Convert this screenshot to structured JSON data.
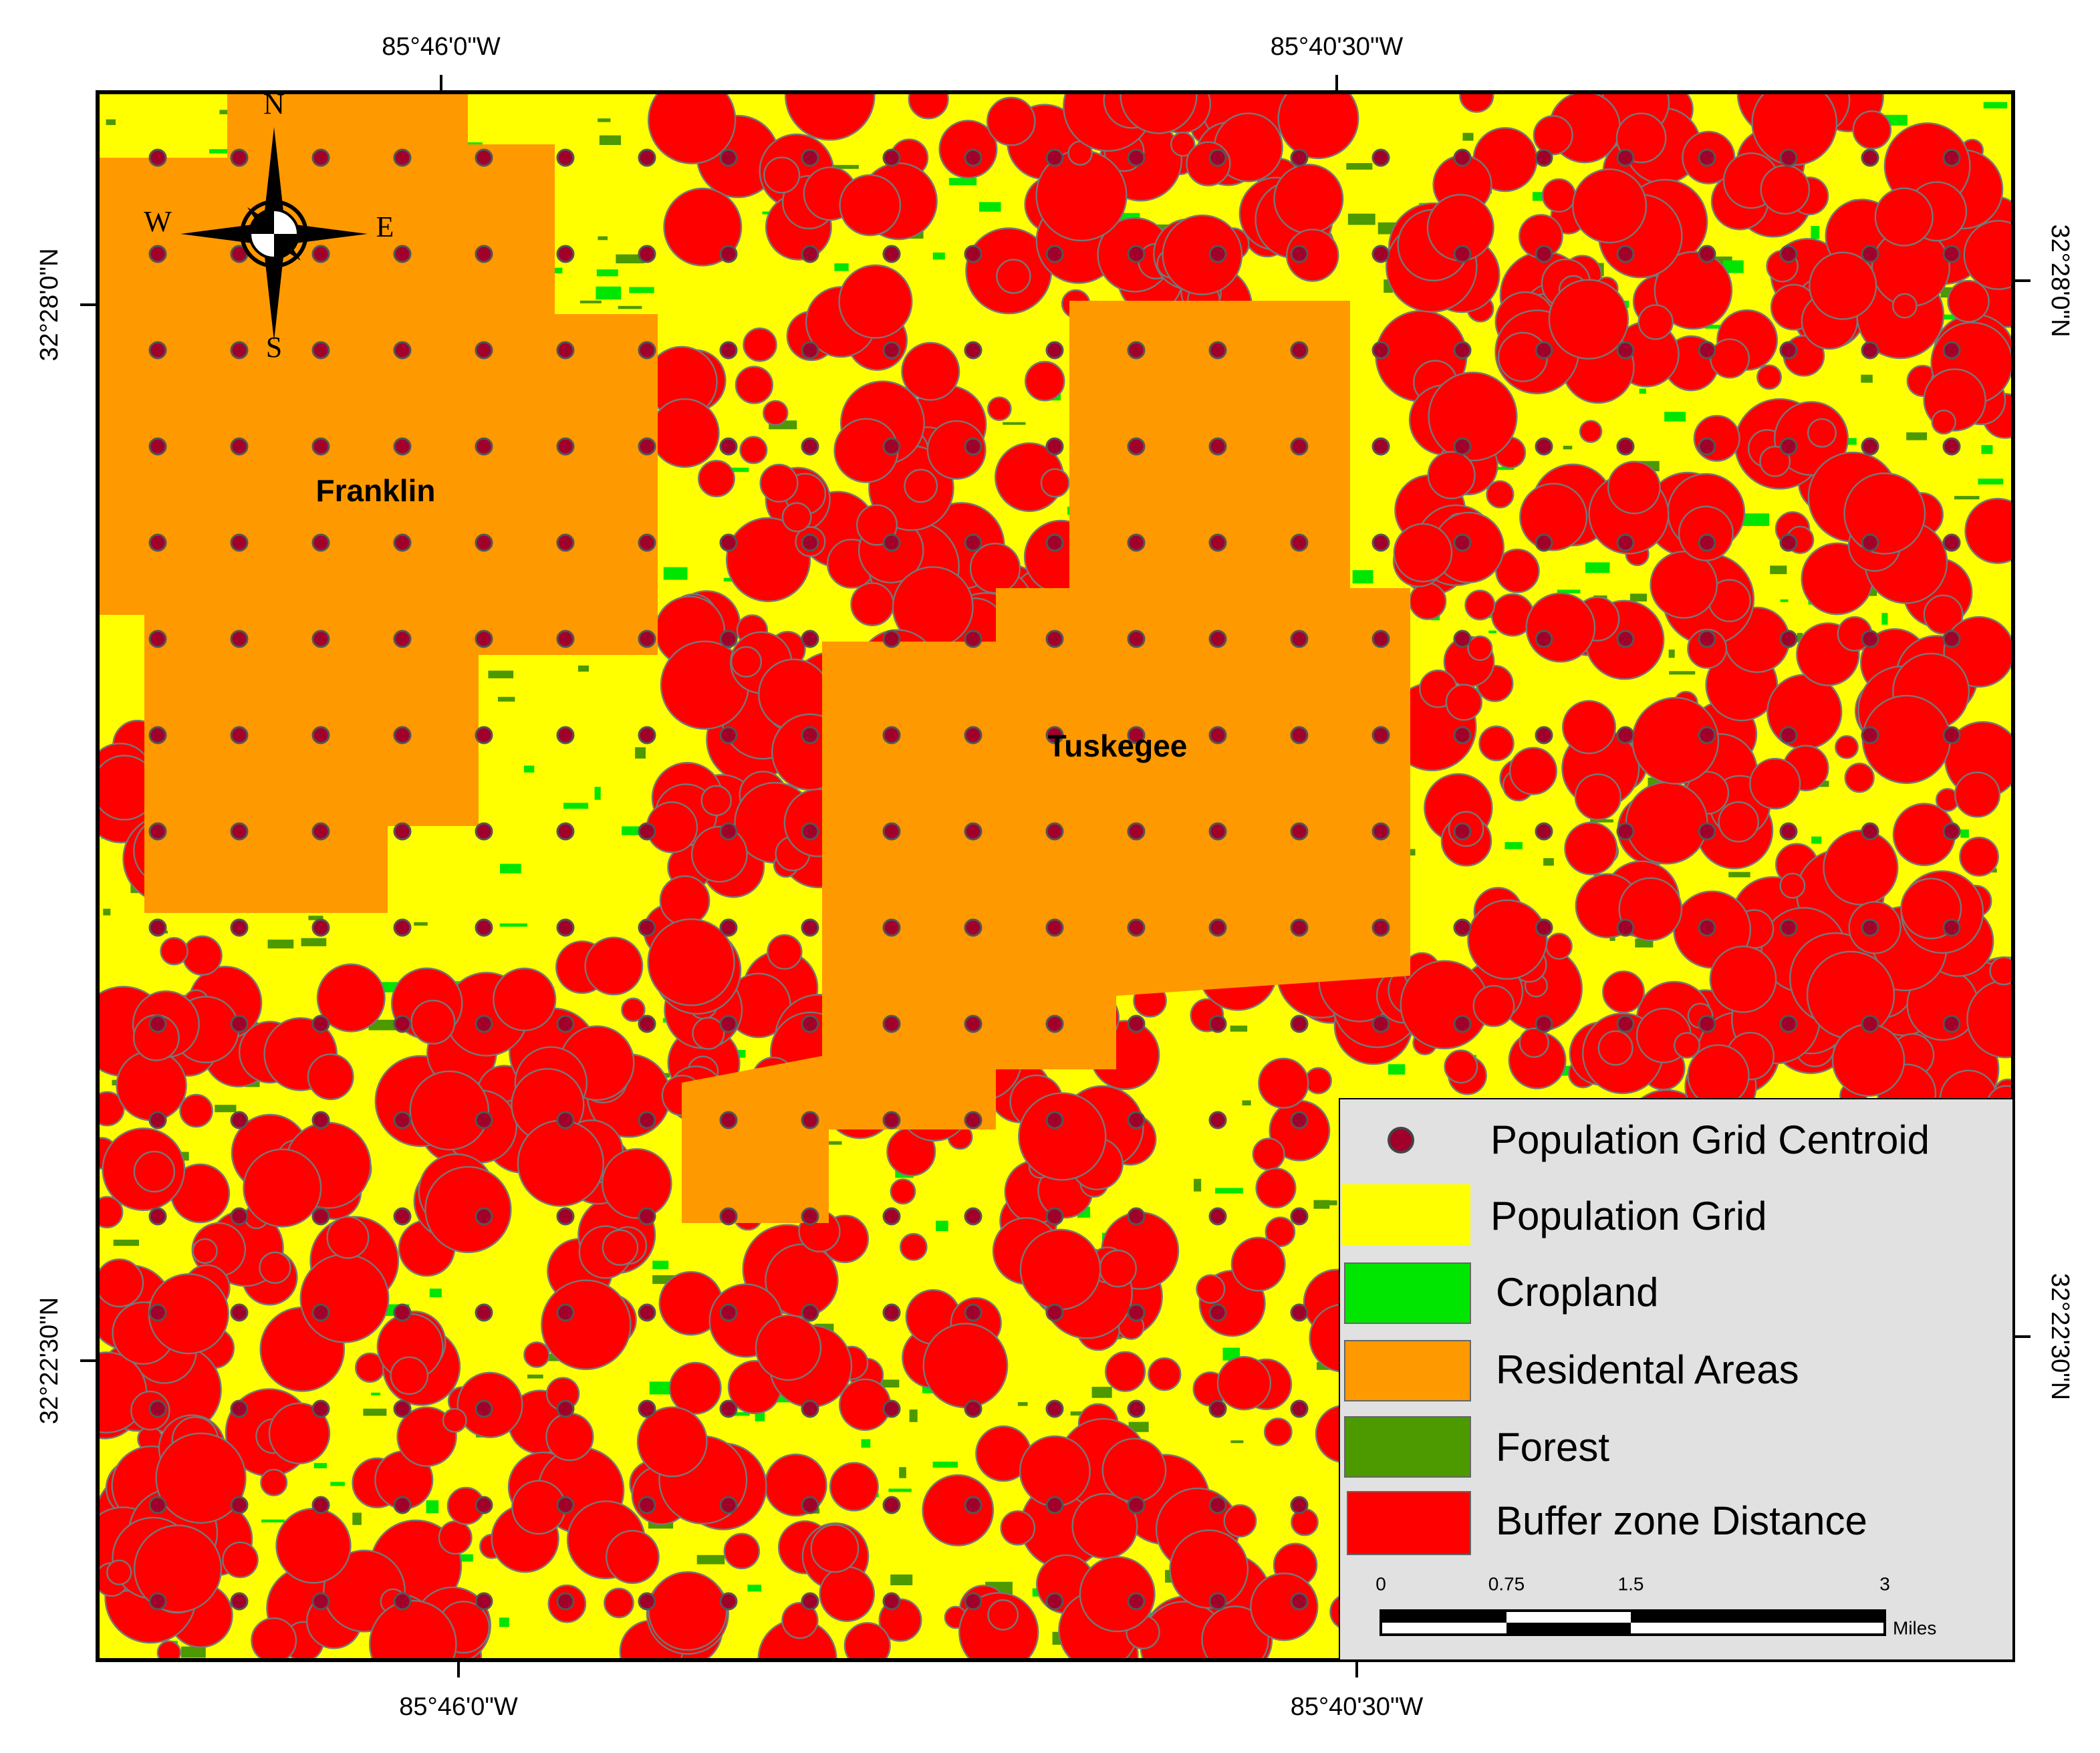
{
  "map": {
    "top_labels": [
      "85°46'0\"W",
      "85°40'30\"W"
    ],
    "bottom_labels": [
      "85°46'0\"W",
      "85°40'30\"W"
    ],
    "left_labels": [
      "32°28'0\"N",
      "32°22'30\"N"
    ],
    "right_labels": [
      "32°28'0\"N",
      "32°22'30\"N"
    ],
    "places": [
      "Franklin",
      "Tuskegee"
    ],
    "compass": {
      "n": "N",
      "e": "E",
      "s": "S",
      "w": "W"
    }
  },
  "legend": {
    "items": [
      "Population Grid Centroid",
      "Population Grid",
      "Cropland",
      "Residental Areas",
      "Forest",
      "Buffer zone Distance"
    ]
  },
  "scale_bar": {
    "ticks": [
      "0",
      "0.75",
      "1.5",
      "3"
    ],
    "unit": "Miles"
  }
}
